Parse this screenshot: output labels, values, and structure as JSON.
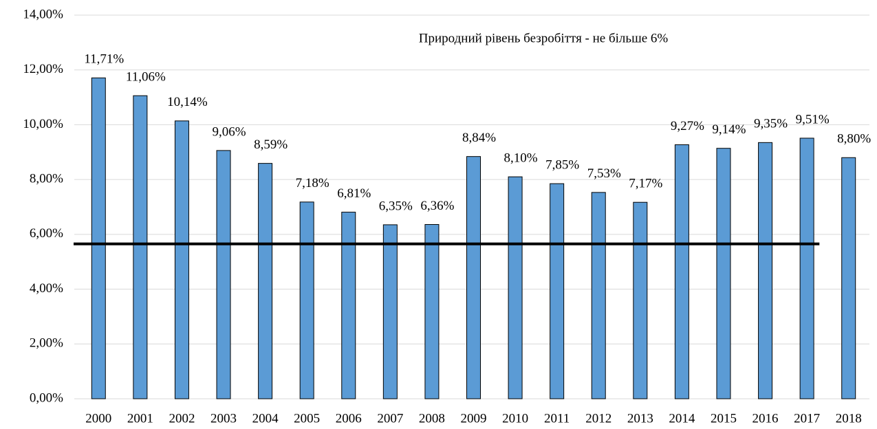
{
  "chart_data": {
    "type": "bar",
    "annotation": "Природний рівень безробіття - не більше 6%",
    "categories": [
      "2000",
      "2001",
      "2002",
      "2003",
      "2004",
      "2005",
      "2006",
      "2007",
      "2008",
      "2009",
      "2010",
      "2011",
      "2012",
      "2013",
      "2014",
      "2015",
      "2016",
      "2017",
      "2018"
    ],
    "values": [
      11.71,
      11.06,
      10.14,
      9.06,
      8.59,
      7.18,
      6.81,
      6.35,
      6.36,
      8.84,
      8.1,
      7.85,
      7.53,
      7.17,
      9.27,
      9.14,
      9.35,
      9.51,
      8.8
    ],
    "value_labels": [
      "11,71%",
      "11,06%",
      "10,14%",
      "9,06%",
      "8,59%",
      "7,18%",
      "6,81%",
      "6,35%",
      "6,36%",
      "8,84%",
      "8,10%",
      "7,85%",
      "7,53%",
      "7,17%",
      "9,27%",
      "9,14%",
      "9,35%",
      "9,51%",
      "8,80%"
    ],
    "color": "#5b9bd5",
    "reference_line": 5.65,
    "ylim": [
      0,
      14
    ],
    "yticks": [
      {
        "value": 0,
        "label": "0,00%"
      },
      {
        "value": 2,
        "label": "2,00%"
      },
      {
        "value": 4,
        "label": "4,00%"
      },
      {
        "value": 6,
        "label": "6,00%"
      },
      {
        "value": 8,
        "label": "8,00%"
      },
      {
        "value": 10,
        "label": "10,00%"
      },
      {
        "value": 12,
        "label": "12,00%"
      },
      {
        "value": 14,
        "label": "14,00%"
      }
    ],
    "grid": true
  }
}
